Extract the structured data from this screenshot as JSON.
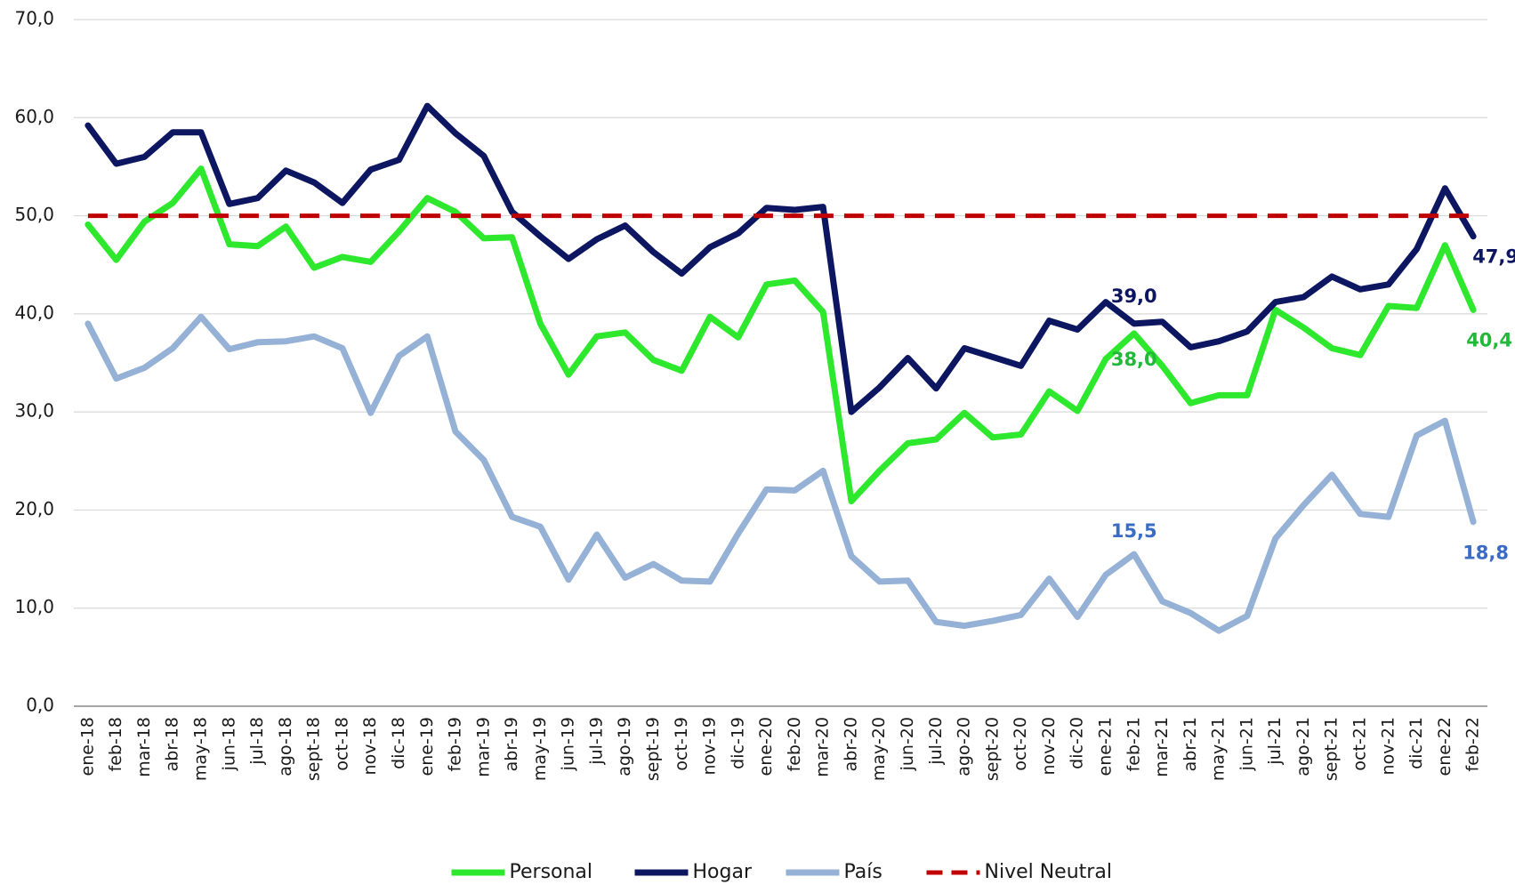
{
  "chart_data": {
    "type": "line",
    "categories": [
      "ene-18",
      "feb-18",
      "mar-18",
      "abr-18",
      "may-18",
      "jun-18",
      "jul-18",
      "ago-18",
      "sept-18",
      "oct-18",
      "nov-18",
      "dic-18",
      "ene-19",
      "feb-19",
      "mar-19",
      "abr-19",
      "may-19",
      "jun-19",
      "jul-19",
      "ago-19",
      "sept-19",
      "oct-19",
      "nov-19",
      "dic-19",
      "ene-20",
      "feb-20",
      "mar-20",
      "abr-20",
      "may-20",
      "jun-20",
      "jul-20",
      "ago-20",
      "sept-20",
      "oct-20",
      "nov-20",
      "dic-20",
      "ene-21",
      "feb-21",
      "mar-21",
      "abr-21",
      "may-21",
      "jun-21",
      "jul-21",
      "ago-21",
      "sept-21",
      "oct-21",
      "nov-21",
      "dic-21",
      "ene-22",
      "feb-22"
    ],
    "series": [
      {
        "name": "Personal",
        "color": "#2ee82e",
        "label_color": "#22b83a",
        "values": [
          49.1,
          45.5,
          49.4,
          51.3,
          54.8,
          47.1,
          46.9,
          48.9,
          44.7,
          45.8,
          45.3,
          48.4,
          51.8,
          50.4,
          47.7,
          47.8,
          39.0,
          33.8,
          37.7,
          38.1,
          35.3,
          34.2,
          39.7,
          37.6,
          43.0,
          43.4,
          40.2,
          20.9,
          24.0,
          26.8,
          27.2,
          29.9,
          27.4,
          27.7,
          32.1,
          30.1,
          35.4,
          38.0,
          34.7,
          30.9,
          31.7,
          31.7,
          40.4,
          38.6,
          36.5,
          35.8,
          40.8,
          40.6,
          47.0,
          40.4
        ],
        "value_labels": [
          null,
          null,
          null,
          null,
          null,
          null,
          null,
          null,
          null,
          null,
          null,
          null,
          null,
          null,
          null,
          null,
          null,
          null,
          null,
          null,
          null,
          null,
          null,
          null,
          null,
          null,
          null,
          null,
          null,
          null,
          null,
          null,
          null,
          null,
          null,
          null,
          null,
          "38,0",
          null,
          null,
          null,
          null,
          null,
          null,
          null,
          null,
          null,
          null,
          null,
          "40,4"
        ]
      },
      {
        "name": "Hogar",
        "color": "#0d1660",
        "label_color": "#0d1660",
        "values": [
          59.2,
          55.3,
          56.0,
          58.5,
          58.5,
          51.2,
          51.8,
          54.6,
          53.4,
          51.3,
          54.7,
          55.7,
          61.2,
          58.4,
          56.1,
          50.4,
          47.9,
          45.6,
          47.6,
          49.0,
          46.3,
          44.1,
          46.8,
          48.2,
          50.8,
          50.6,
          50.9,
          30.0,
          32.5,
          35.5,
          32.4,
          36.5,
          35.6,
          34.7,
          39.3,
          38.4,
          41.2,
          39.0,
          39.2,
          36.6,
          37.2,
          38.2,
          41.2,
          41.7,
          43.8,
          42.5,
          43.0,
          46.6,
          52.8,
          47.9
        ],
        "value_labels": [
          null,
          null,
          null,
          null,
          null,
          null,
          null,
          null,
          null,
          null,
          null,
          null,
          null,
          null,
          null,
          null,
          null,
          null,
          null,
          null,
          null,
          null,
          null,
          null,
          null,
          null,
          null,
          null,
          null,
          null,
          null,
          null,
          null,
          null,
          null,
          null,
          null,
          "39,0",
          null,
          null,
          null,
          null,
          null,
          null,
          null,
          null,
          null,
          null,
          null,
          "47,9"
        ]
      },
      {
        "name": "País",
        "color": "#95b1d6",
        "label_color": "#3a6cc4",
        "values": [
          39.0,
          33.4,
          34.5,
          36.5,
          39.7,
          36.4,
          37.1,
          37.2,
          37.7,
          36.5,
          29.9,
          35.7,
          37.7,
          28.0,
          25.1,
          19.3,
          18.3,
          12.9,
          17.5,
          13.1,
          14.5,
          12.8,
          12.7,
          17.6,
          22.1,
          22.0,
          24.0,
          15.3,
          12.7,
          12.8,
          8.6,
          8.2,
          8.7,
          9.3,
          13.0,
          9.1,
          13.4,
          15.5,
          10.7,
          9.5,
          7.7,
          9.2,
          17.1,
          20.5,
          23.6,
          19.6,
          19.3,
          27.6,
          29.1,
          18.8
        ],
        "value_labels": [
          null,
          null,
          null,
          null,
          null,
          null,
          null,
          null,
          null,
          null,
          null,
          null,
          null,
          null,
          null,
          null,
          null,
          null,
          null,
          null,
          null,
          null,
          null,
          null,
          null,
          null,
          null,
          null,
          null,
          null,
          null,
          null,
          null,
          null,
          null,
          null,
          null,
          "15,5",
          null,
          null,
          null,
          null,
          null,
          null,
          null,
          null,
          null,
          null,
          null,
          "18,8"
        ]
      },
      {
        "name": "Nivel Neutral",
        "color": "#c00000",
        "line_style": "dashed",
        "values": [
          50,
          50,
          50,
          50,
          50,
          50,
          50,
          50,
          50,
          50,
          50,
          50,
          50,
          50,
          50,
          50,
          50,
          50,
          50,
          50,
          50,
          50,
          50,
          50,
          50,
          50,
          50,
          50,
          50,
          50,
          50,
          50,
          50,
          50,
          50,
          50,
          50,
          50,
          50,
          50,
          50,
          50,
          50,
          50,
          50,
          50,
          50,
          50,
          50,
          50
        ]
      }
    ],
    "ylim": [
      0,
      70
    ],
    "yticks": [
      {
        "value": 0,
        "label": "0,0"
      },
      {
        "value": 10,
        "label": "10,0"
      },
      {
        "value": 20,
        "label": "20,0"
      },
      {
        "value": 30,
        "label": "30,0"
      },
      {
        "value": 40,
        "label": "40,0"
      },
      {
        "value": 50,
        "label": "50,0"
      },
      {
        "value": 60,
        "label": "60,0"
      },
      {
        "value": 70,
        "label": "70,0"
      }
    ],
    "grid": true,
    "legend": "bottom"
  }
}
